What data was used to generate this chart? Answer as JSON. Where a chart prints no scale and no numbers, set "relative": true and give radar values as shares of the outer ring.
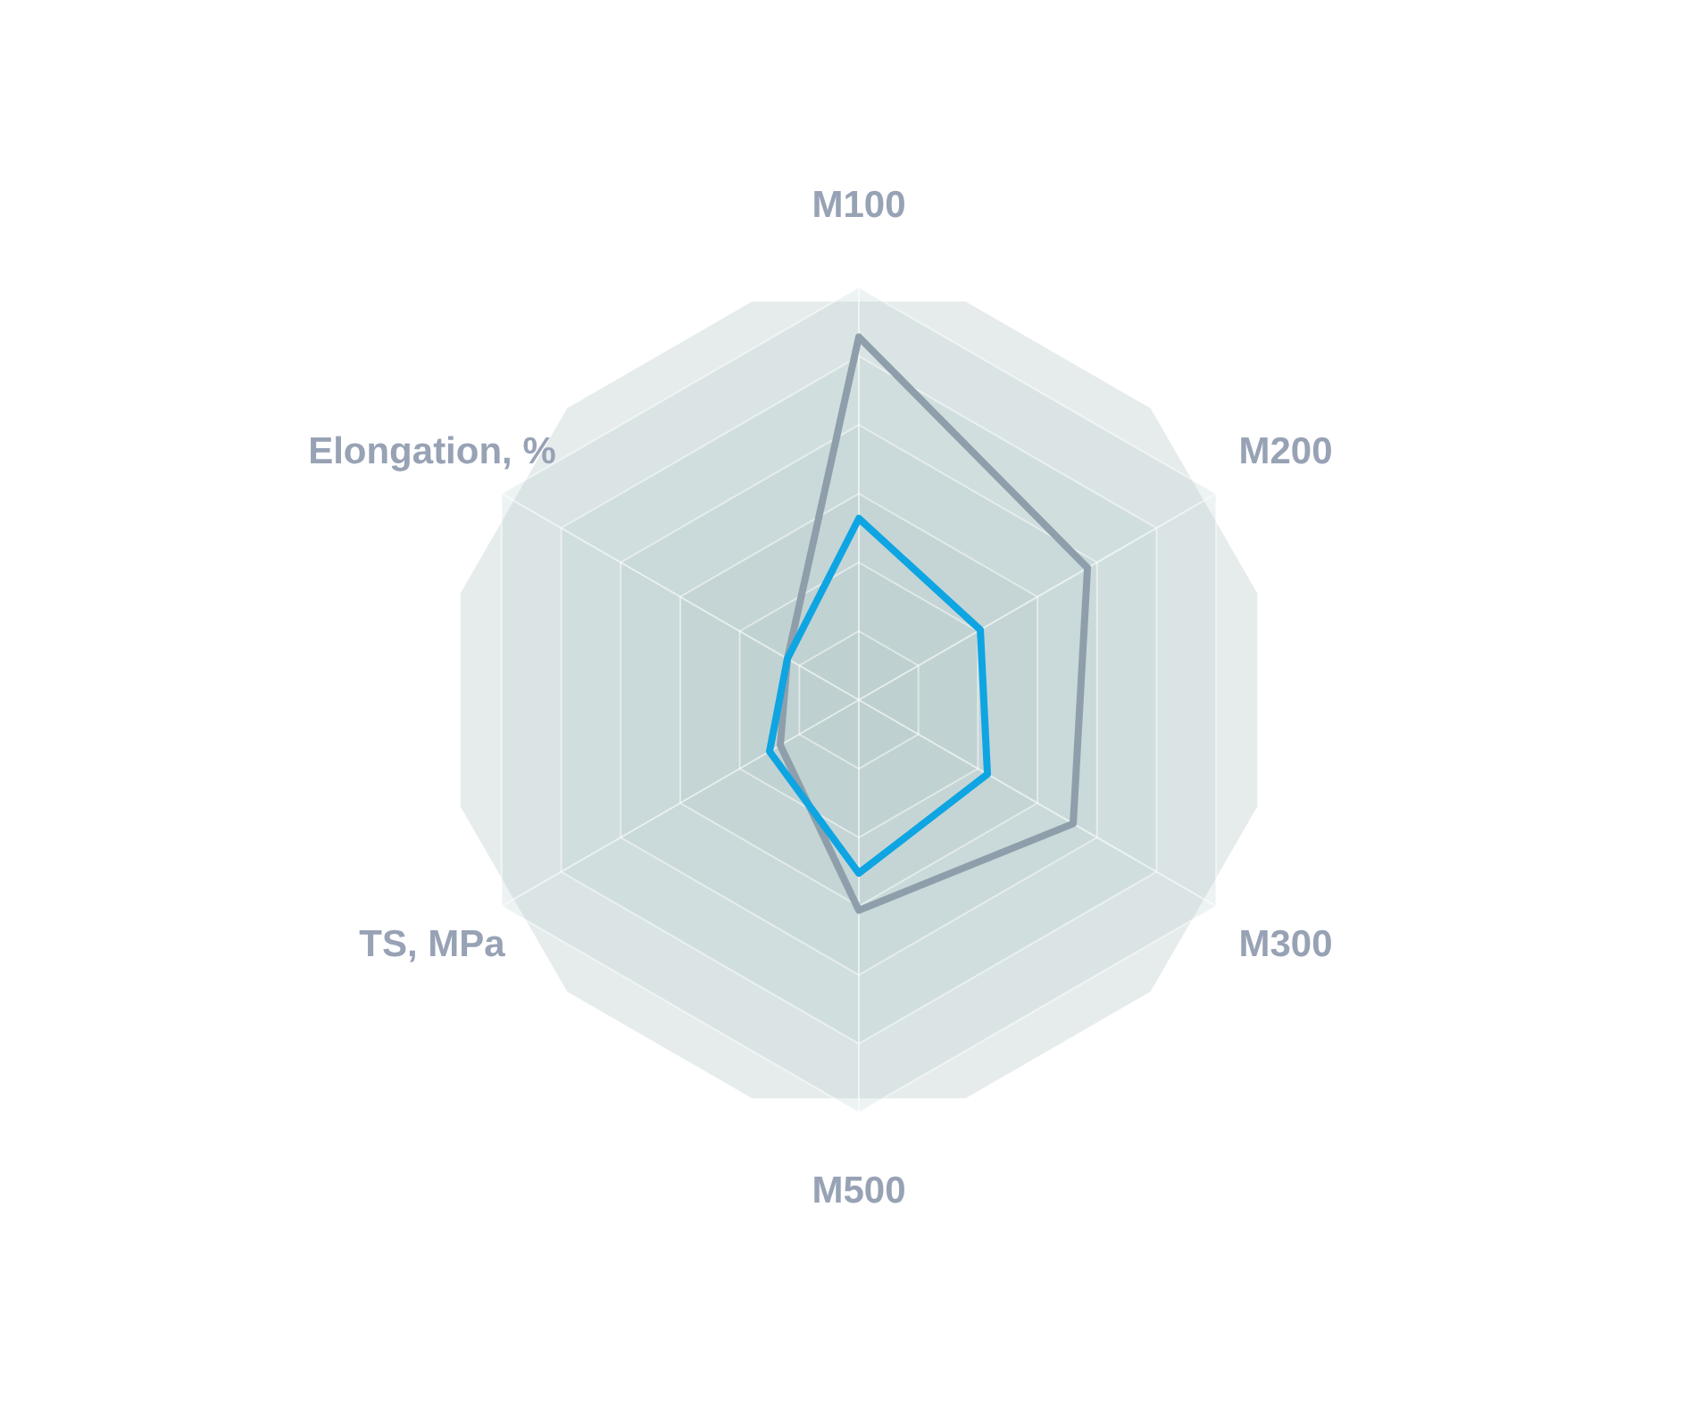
{
  "chart_data": {
    "type": "radar",
    "relative": true,
    "grid": true,
    "categories": [
      "M100",
      "M200",
      "M300",
      "M500",
      "TS, MPa",
      "Elongation, %"
    ],
    "series": [
      {
        "color": "#8e9fab",
        "values": [
          0.88,
          0.64,
          0.6,
          0.51,
          0.22,
          0.2
        ]
      },
      {
        "color": "#0ea5e2",
        "values": [
          0.44,
          0.34,
          0.36,
          0.42,
          0.25,
          0.2
        ]
      }
    ]
  }
}
